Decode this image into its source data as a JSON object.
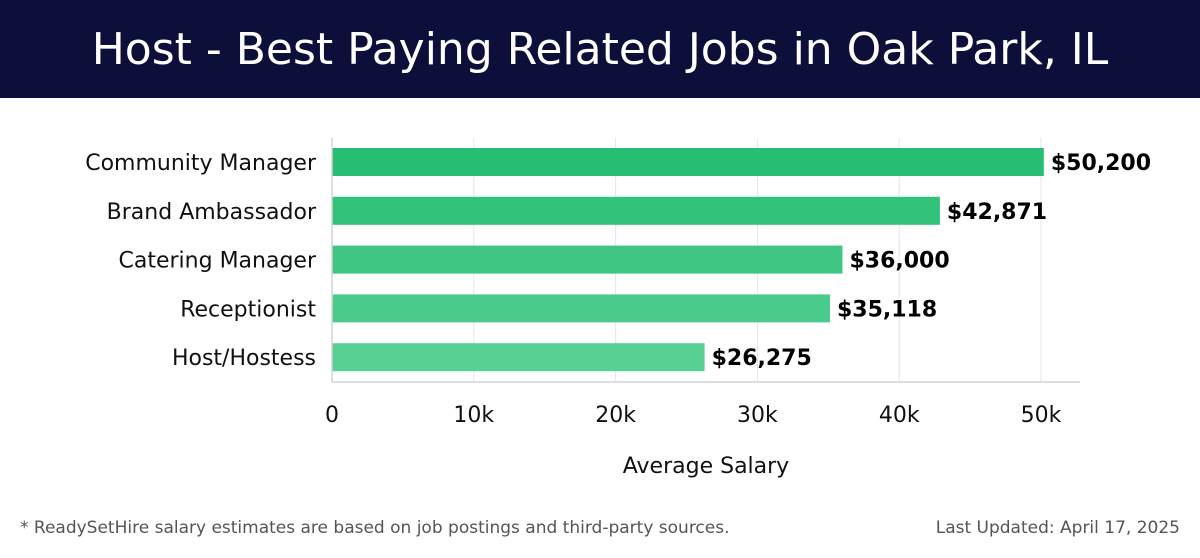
{
  "header": {
    "title": "Host - Best Paying Related Jobs in Oak Park, IL"
  },
  "chart_data": {
    "type": "bar",
    "orientation": "horizontal",
    "categories": [
      "Community Manager",
      "Brand Ambassador",
      "Catering Manager",
      "Receptionist",
      "Host/Hostess"
    ],
    "values": [
      50200,
      42871,
      36000,
      35118,
      26275
    ],
    "value_labels": [
      "$50,200",
      "$42,871",
      "$36,000",
      "$35,118",
      "$26,275"
    ],
    "bar_colors": [
      "#27bd72",
      "#33c27a",
      "#3fc683",
      "#4aca8b",
      "#58cf95"
    ],
    "xlabel": "Average Salary",
    "ylabel": "",
    "xlim": [
      0,
      53000
    ],
    "xticks": [
      0,
      10000,
      20000,
      30000,
      40000,
      50000
    ],
    "xtick_labels": [
      "0",
      "10k",
      "20k",
      "30k",
      "40k",
      "50k"
    ],
    "grid": "vertical"
  },
  "footer": {
    "note": "* ReadySetHire salary estimates are based on job postings and third-party sources.",
    "updated": "Last Updated: April 17, 2025"
  }
}
